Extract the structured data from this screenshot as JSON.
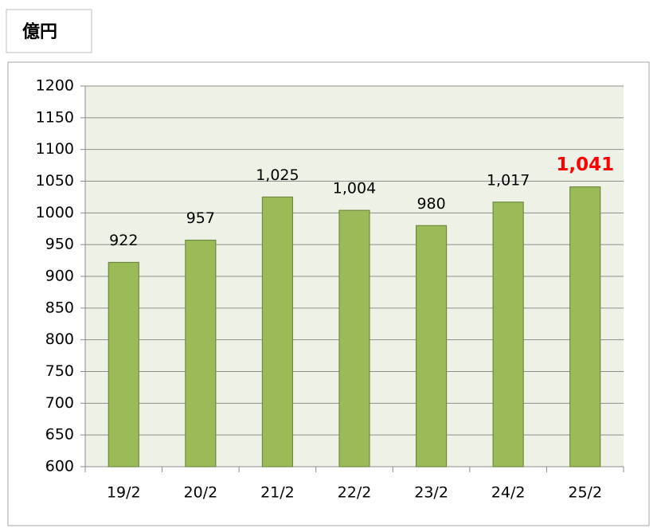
{
  "chart_data": {
    "type": "bar",
    "unit": "億円",
    "categories": [
      "19/2",
      "20/2",
      "21/2",
      "22/2",
      "23/2",
      "24/2",
      "25/2"
    ],
    "values": [
      922,
      957,
      1025,
      1004,
      980,
      1017,
      1041
    ],
    "value_labels": [
      "922",
      "957",
      "1,025",
      "1,004",
      "980",
      "1,017",
      "1,041"
    ],
    "label_colors": [
      "#000000",
      "#000000",
      "#000000",
      "#000000",
      "#000000",
      "#000000",
      "#ff0000"
    ],
    "color": "#9bbb59",
    "ylim": [
      600,
      1200
    ],
    "yticks": [
      600,
      650,
      700,
      750,
      800,
      850,
      900,
      950,
      1000,
      1050,
      1100,
      1150,
      1200
    ],
    "grid": true
  }
}
